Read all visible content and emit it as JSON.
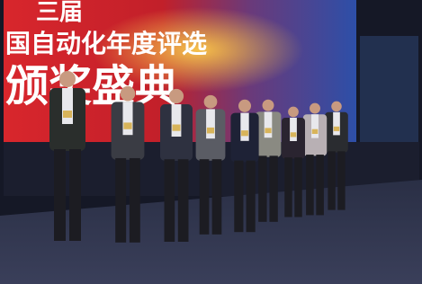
{
  "banner": {
    "line1": "三届",
    "line2": "国自动化年度评选",
    "line3": "颁奖盛典"
  }
}
